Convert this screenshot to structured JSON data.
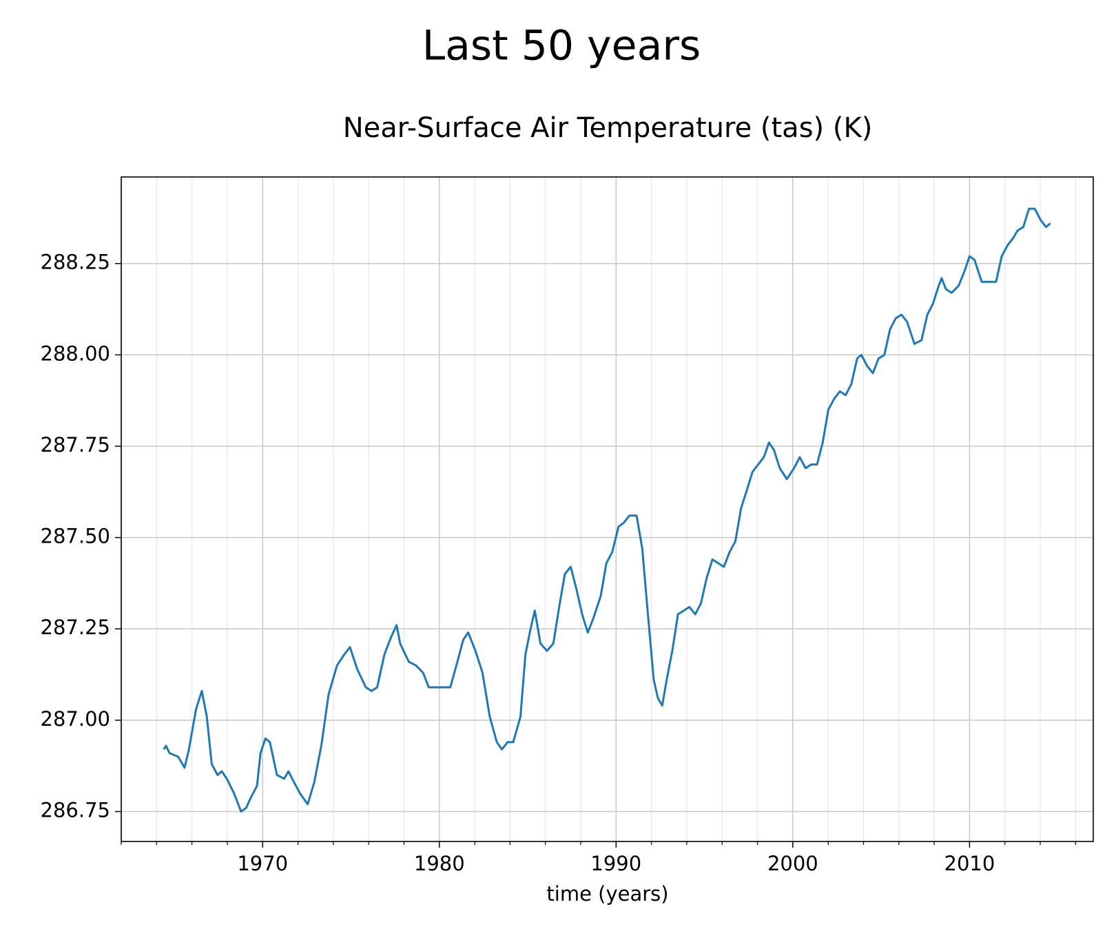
{
  "chart_data": {
    "type": "line",
    "title": "Last 50 years",
    "subtitle": "Near-Surface Air Temperature (tas) (K)",
    "x_label": "time (years)",
    "color": "#1f77b4",
    "grid": true,
    "xlim": [
      1962,
      2017
    ],
    "xticks": [
      1970,
      1980,
      1990,
      2000,
      2010
    ],
    "xminorticks": [
      1962,
      1964,
      1966,
      1968,
      1972,
      1974,
      1976,
      1978,
      1982,
      1984,
      1986,
      1988,
      1992,
      1994,
      1996,
      1998,
      2002,
      2004,
      2006,
      2008,
      2012,
      2014,
      2016
    ],
    "ylim": [
      286.668,
      288.487
    ],
    "yticks": [
      286.75,
      {
        "value": 287,
        "label": "287.00"
      },
      287.25,
      {
        "value": 287.5,
        "label": "287.50"
      },
      287.75,
      {
        "value": 288,
        "label": "288.00"
      },
      288.25
    ],
    "x": [
      1964.41,
      1964.53,
      1964.73,
      1965.22,
      1965.58,
      1965.83,
      1966.23,
      1966.56,
      1966.84,
      1967.12,
      1967.45,
      1967.69,
      1967.97,
      1968.38,
      1968.78,
      1969.07,
      1969.35,
      1969.68,
      1969.88,
      1970.16,
      1970.41,
      1970.81,
      1971.22,
      1971.46,
      1971.78,
      1972.11,
      1972.55,
      1972.92,
      1973.32,
      1973.73,
      1974.21,
      1974.62,
      1974.94,
      1975.35,
      1975.84,
      1976.16,
      1976.48,
      1976.89,
      1977.29,
      1977.58,
      1977.78,
      1978.27,
      1978.67,
      1979.08,
      1979.4,
      1979.81,
      1980.21,
      1980.62,
      1981.02,
      1981.35,
      1981.63,
      1982.04,
      1982.44,
      1982.85,
      1983.25,
      1983.54,
      1983.86,
      1984.18,
      1984.59,
      1984.87,
      1985.16,
      1985.4,
      1985.72,
      1986.09,
      1986.45,
      1986.78,
      1987.1,
      1987.43,
      1987.75,
      1988.08,
      1988.4,
      1988.72,
      1989.13,
      1989.45,
      1989.78,
      1990.14,
      1990.43,
      1990.75,
      1991.16,
      1991.48,
      1991.8,
      1992.13,
      1992.37,
      1992.61,
      1992.86,
      1993.18,
      1993.5,
      1993.83,
      1994.15,
      1994.48,
      1994.8,
      1995.13,
      1995.45,
      1995.77,
      1996.1,
      1996.42,
      1996.75,
      1997.07,
      1997.4,
      1997.72,
      1998.04,
      1998.36,
      1998.65,
      1998.93,
      1999.26,
      1999.66,
      2000.07,
      2000.39,
      2000.72,
      2001.04,
      2001.37,
      2001.69,
      2002.01,
      2002.34,
      2002.66,
      2002.99,
      2003.31,
      2003.64,
      2003.88,
      2004.2,
      2004.53,
      2004.85,
      2005.18,
      2005.5,
      2005.82,
      2006.15,
      2006.47,
      2006.88,
      2007.28,
      2007.61,
      2007.93,
      2008.26,
      2008.42,
      2008.66,
      2008.99,
      2009.39,
      2009.72,
      2010.0,
      2010.28,
      2010.69,
      2011.01,
      2011.5,
      2011.82,
      2012.15,
      2012.47,
      2012.71,
      2013.04,
      2013.36,
      2013.69,
      2014.01,
      2014.33,
      2014.57
    ],
    "values": [
      286.92,
      286.93,
      286.91,
      286.9,
      286.87,
      286.92,
      287.03,
      287.08,
      287.01,
      286.88,
      286.85,
      286.86,
      286.84,
      286.8,
      286.75,
      286.76,
      286.79,
      286.82,
      286.91,
      286.95,
      286.94,
      286.85,
      286.84,
      286.86,
      286.83,
      286.8,
      286.77,
      286.83,
      286.93,
      287.07,
      287.15,
      287.18,
      287.2,
      287.14,
      287.09,
      287.08,
      287.09,
      287.18,
      287.23,
      287.26,
      287.21,
      287.16,
      287.15,
      287.13,
      287.09,
      287.09,
      287.09,
      287.09,
      287.16,
      287.22,
      287.24,
      287.19,
      287.13,
      287.01,
      286.94,
      286.92,
      286.94,
      286.94,
      287.01,
      287.18,
      287.25,
      287.3,
      287.21,
      287.19,
      287.21,
      287.31,
      287.4,
      287.42,
      287.36,
      287.29,
      287.24,
      287.28,
      287.34,
      287.43,
      287.46,
      287.53,
      287.54,
      287.56,
      287.56,
      287.47,
      287.29,
      287.11,
      287.06,
      287.04,
      287.11,
      287.19,
      287.29,
      287.3,
      287.31,
      287.29,
      287.32,
      287.39,
      287.44,
      287.43,
      287.42,
      287.46,
      287.49,
      287.58,
      287.63,
      287.68,
      287.7,
      287.72,
      287.76,
      287.74,
      287.69,
      287.66,
      287.69,
      287.72,
      287.69,
      287.7,
      287.7,
      287.76,
      287.85,
      287.88,
      287.9,
      287.89,
      287.92,
      287.99,
      288.0,
      287.97,
      287.95,
      287.99,
      288.0,
      288.07,
      288.1,
      288.11,
      288.09,
      288.03,
      288.04,
      288.11,
      288.14,
      288.19,
      288.21,
      288.18,
      288.17,
      288.19,
      288.23,
      288.27,
      288.26,
      288.2,
      288.2,
      288.2,
      288.27,
      288.3,
      288.32,
      288.34,
      288.35,
      288.4,
      288.4,
      288.37,
      288.35,
      288.36
    ]
  }
}
